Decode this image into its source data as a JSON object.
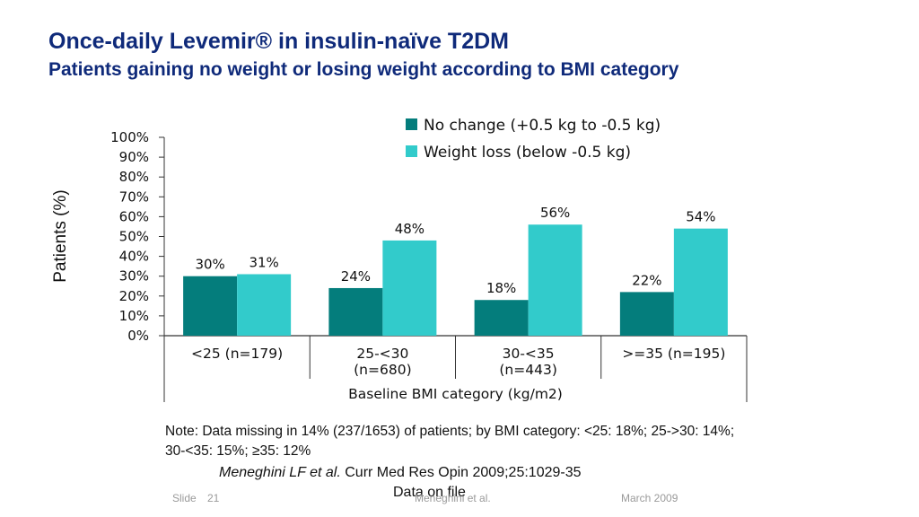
{
  "slide": {
    "title": "Once-daily Levemir® in insulin-naïve T2DM",
    "subtitle": "Patients gaining no weight or losing weight according to BMI category",
    "note": "Note: Data missing in 14% (237/1653) of patients; by BMI category: <25: 18%; 25->30: 14%; 30-<35: 15%; ≥35: 12%",
    "reference_author": "Meneghini LF et al.",
    "reference_journal": " Curr Med Res Opin 2009;25:1029-35",
    "reference_extra": "Data on file",
    "footer": {
      "slide_label": "Slide",
      "slide_number": "21",
      "author": "Meneghini et al.",
      "date": "March 2009"
    }
  },
  "colors": {
    "title": "#0f2a7a",
    "series_no_change": "#047d7c",
    "series_weight_loss": "#32cbcb",
    "axis": "#333333"
  },
  "chart_data": {
    "type": "bar",
    "categories": [
      [
        "<25 (n=179)"
      ],
      [
        "25-<30",
        "(n=680)"
      ],
      [
        "30-<35",
        "(n=443)"
      ],
      [
        ">=35 (n=195)"
      ]
    ],
    "series": [
      {
        "name": "No change (+0.5 kg to -0.5 kg)",
        "values": [
          30,
          24,
          18,
          22
        ],
        "labels": [
          "30%",
          "24%",
          "18%",
          "22%"
        ]
      },
      {
        "name": "Weight loss (below -0.5 kg)",
        "values": [
          31,
          48,
          56,
          54
        ],
        "labels": [
          "31%",
          "48%",
          "56%",
          "54%"
        ]
      }
    ],
    "xlabel": "Baseline BMI category (kg/m2)",
    "ylabel": "Patients (%)",
    "ylim": [
      0,
      100
    ],
    "yticks": [
      "0%",
      "10%",
      "20%",
      "30%",
      "40%",
      "50%",
      "60%",
      "70%",
      "80%",
      "90%",
      "100%"
    ],
    "legend_position": "top-right",
    "grid": false
  }
}
